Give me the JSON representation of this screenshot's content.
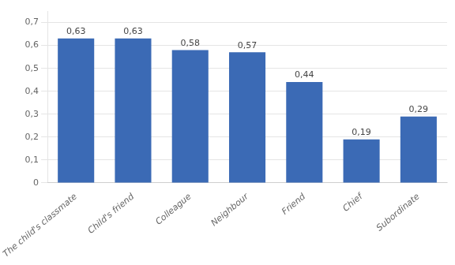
{
  "chart_data": {
    "type": "bar",
    "categories": [
      "The child's classmate",
      "Child's friend",
      "Colleague",
      "Neighbour",
      "Friend",
      "Chief",
      "Subordinate"
    ],
    "values": [
      0.63,
      0.63,
      0.58,
      0.57,
      0.44,
      0.19,
      0.29
    ],
    "value_labels": [
      "0,63",
      "0,63",
      "0,58",
      "0,57",
      "0,44",
      "0,19",
      "0,29"
    ],
    "color": "#3B6AB5",
    "ylim": [
      0,
      0.75
    ],
    "yticks": [
      0,
      {
        "value": 0.1,
        "label": "0,1"
      },
      {
        "value": 0.2,
        "label": "0,2"
      },
      {
        "value": 0.3,
        "label": "0,3"
      },
      {
        "value": 0.4,
        "label": "0,4"
      },
      {
        "value": 0.5,
        "label": "0,5"
      },
      {
        "value": 0.6,
        "label": "0,6"
      },
      {
        "value": 0.7,
        "label": "0,7"
      }
    ],
    "grid": true,
    "data_labels": true
  }
}
